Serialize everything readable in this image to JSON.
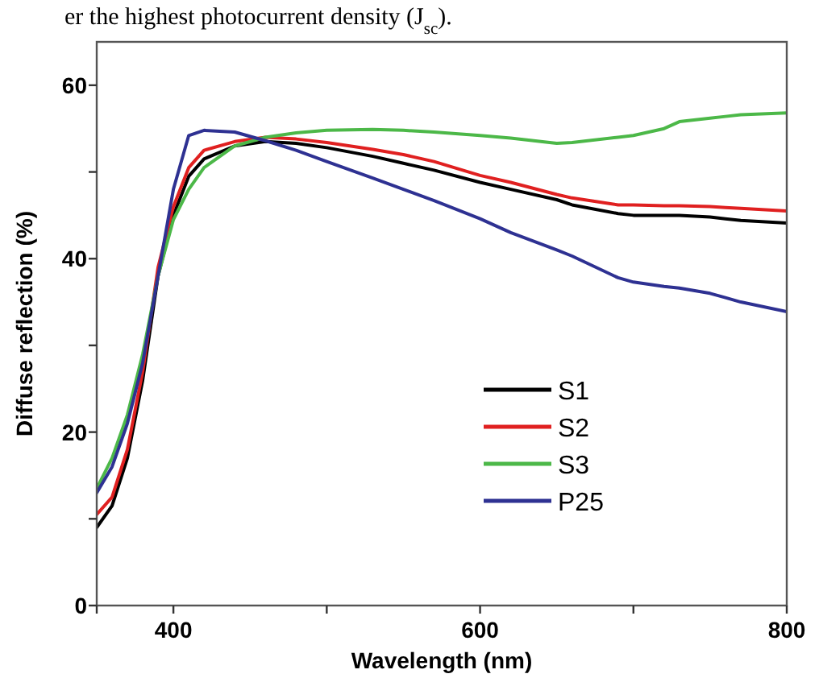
{
  "chart_data": {
    "type": "line",
    "xlabel": "Wavelength (nm)",
    "ylabel": "Diffuse reflection (%)",
    "annotations": [
      "er the highest photocurrent density (J$_{sc}$)."
    ],
    "xlim": [
      350,
      800
    ],
    "xticks": [
      {
        "value": 350,
        "label": null
      },
      400,
      {
        "value": 500,
        "label": null
      },
      600,
      {
        "value": 700,
        "label": null
      },
      800
    ],
    "ylim": [
      0,
      65
    ],
    "yticks": [
      0,
      {
        "value": 10,
        "label": null
      },
      20,
      {
        "value": 30,
        "label": null
      },
      40,
      {
        "value": 50,
        "label": null
      },
      60
    ],
    "grid": false,
    "legend": "right",
    "marker": "none",
    "line_style": "solid",
    "x": [
      350,
      360,
      370,
      380,
      390,
      400,
      410,
      420,
      440,
      460,
      480,
      500,
      530,
      550,
      570,
      600,
      620,
      650,
      660,
      690,
      700,
      720,
      730,
      750,
      760,
      770,
      800
    ],
    "series": [
      {
        "name": "S1",
        "color": "#000000",
        "values": [
          9,
          11.5,
          17,
          26,
          38,
          45,
          49.5,
          51.5,
          53,
          53.5,
          53.3,
          52.8,
          51.8,
          51,
          50.2,
          48.8,
          48,
          46.8,
          46.2,
          45.2,
          45,
          45,
          45,
          44.8,
          44.6,
          44.4,
          44.1
        ]
      },
      {
        "name": "S2",
        "color": "#e02020",
        "values": [
          10.5,
          12.5,
          18,
          27,
          39,
          46,
          50.5,
          52.5,
          53.5,
          54,
          53.8,
          53.4,
          52.6,
          52,
          51.2,
          49.6,
          48.8,
          47.4,
          47,
          46.2,
          46.2,
          46.1,
          46.1,
          46,
          45.9,
          45.8,
          45.5
        ]
      },
      {
        "name": "S3",
        "color": "#4cb848",
        "values": [
          13.5,
          17,
          22,
          29,
          38,
          44.5,
          48,
          50.5,
          53,
          54,
          54.5,
          54.8,
          54.9,
          54.8,
          54.6,
          54.2,
          53.9,
          53.3,
          53.4,
          54,
          54.2,
          55,
          55.8,
          56.2,
          56.4,
          56.6,
          56.8
        ]
      },
      {
        "name": "P25",
        "color": "#2e3192",
        "values": [
          13,
          16,
          21,
          28,
          38,
          48,
          54.2,
          54.8,
          54.6,
          53.6,
          52.5,
          51.2,
          49.3,
          48,
          46.7,
          44.6,
          43,
          41,
          40.3,
          37.8,
          37.3,
          36.8,
          36.6,
          36,
          35.5,
          35,
          33.9
        ]
      }
    ]
  }
}
